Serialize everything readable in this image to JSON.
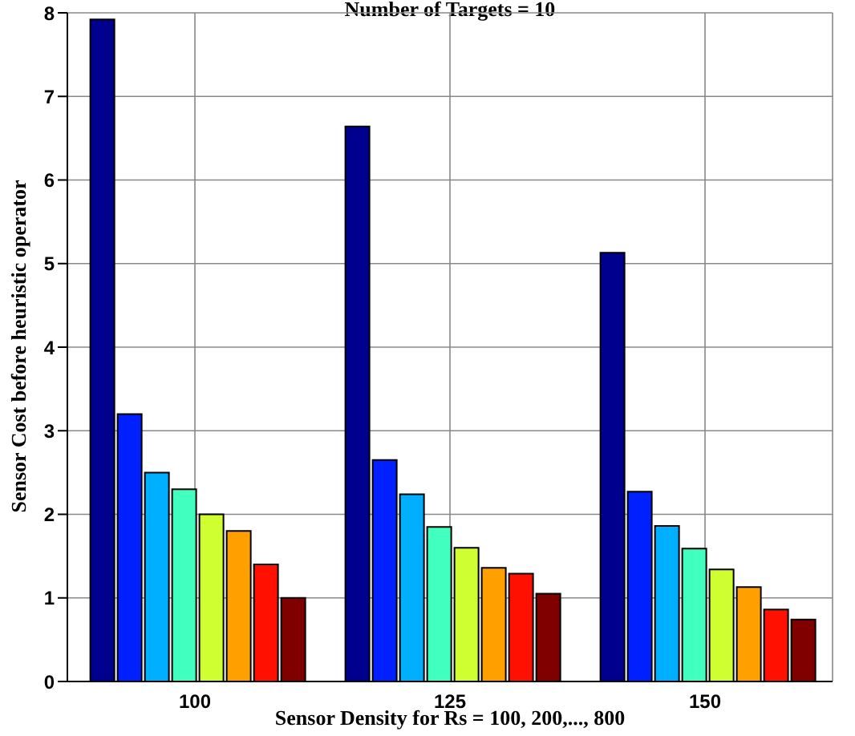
{
  "chart_data": {
    "type": "bar",
    "title": "Number of Targets = 10",
    "xlabel": "Sensor Density for Rs = 100, 200,..., 800",
    "ylabel": "Sensor Cost  before heuristic operator",
    "categories": [
      "100",
      "125",
      "150"
    ],
    "series": [
      {
        "color": "#00008f",
        "values": [
          7.92,
          6.64,
          5.13
        ]
      },
      {
        "color": "#0020ff",
        "values": [
          3.2,
          2.65,
          2.27
        ]
      },
      {
        "color": "#00afff",
        "values": [
          2.5,
          2.24,
          1.86
        ]
      },
      {
        "color": "#40ffbf",
        "values": [
          2.3,
          1.85,
          1.59
        ]
      },
      {
        "color": "#cfff30",
        "values": [
          2.0,
          1.6,
          1.34
        ]
      },
      {
        "color": "#ff9f00",
        "values": [
          1.8,
          1.36,
          1.13
        ]
      },
      {
        "color": "#ff1000",
        "values": [
          1.4,
          1.29,
          0.86
        ]
      },
      {
        "color": "#800000",
        "values": [
          1.0,
          1.05,
          0.74
        ]
      }
    ],
    "ylim": [
      0,
      8
    ],
    "yticks": [
      0,
      1,
      2,
      3,
      4,
      5,
      6,
      7,
      8
    ],
    "grid": true,
    "legend": false
  }
}
